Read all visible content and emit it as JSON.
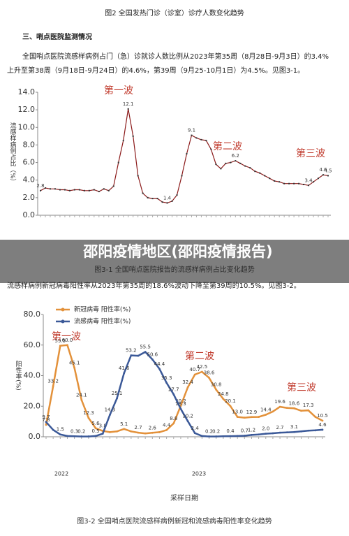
{
  "header": {
    "caption": "图2 全国发热门诊（诊室）诊疗人数变化趋势"
  },
  "section": {
    "heading": "三、哨点医院监测情况",
    "paragraph": "全国哨点医院流感样病例占门（急）诊就诊人数比例从2023年第35周（8月28日-9月3日）的3.4%上升至第38周（9月18日-9月24日）的4.6%，第39周（9月25-10月1日）为4.5%。见图3-1。"
  },
  "watermark": "邵阳疫情地区(邵阳疫情报告)",
  "paragraph2": "流感样病例新冠病毒阳性率从2023年第35周的18.6%波动下降至第39周的10.5%。见图3-2。",
  "chart_data": [
    {
      "type": "line",
      "caption": "图3-1 全国哨点医院报告的流感样病例占比变化趋势",
      "y_label": "流感样病例占比（%）",
      "annotations": [
        "第一波",
        "第二波",
        "第三波"
      ],
      "categories": [
        null,
        null,
        null,
        null,
        null,
        null,
        null,
        null,
        null,
        null,
        null,
        null,
        null,
        null,
        null,
        null,
        null,
        null,
        null,
        null,
        null,
        null,
        null,
        null,
        null,
        null,
        null,
        null,
        null,
        null,
        null,
        null,
        null,
        null,
        null,
        null,
        null,
        null,
        null,
        null,
        null,
        null,
        null,
        null,
        null,
        null,
        null,
        null,
        null,
        null,
        null,
        null,
        null,
        null,
        null,
        null,
        null,
        null,
        null,
        null
      ],
      "series": [
        {
          "color": "#8b1a1a",
          "values": [
            2.8,
            3.1,
            3.0,
            3.0,
            2.9,
            2.9,
            2.8,
            2.9,
            2.9,
            2.8,
            2.8,
            2.9,
            2.7,
            3.0,
            2.8,
            3.3,
            6.0,
            8.5,
            12.1,
            9.0,
            4.5,
            2.5,
            2.0,
            1.9,
            1.9,
            1.5,
            1.4,
            1.6,
            2.3,
            4.5,
            7.0,
            9.1,
            8.8,
            8.6,
            8.5,
            7.5,
            5.8,
            5.3,
            5.9,
            6.0,
            6.2,
            5.9,
            5.6,
            5.4,
            5.0,
            4.8,
            4.5,
            4.2,
            3.9,
            3.8,
            3.6,
            3.6,
            3.6,
            3.6,
            3.5,
            3.4,
            3.8,
            4.2,
            4.6,
            4.5
          ],
          "value_labels": [
            "2.8",
            null,
            null,
            null,
            null,
            null,
            null,
            null,
            null,
            null,
            null,
            null,
            null,
            null,
            null,
            null,
            null,
            null,
            "12.1",
            null,
            null,
            null,
            null,
            null,
            null,
            null,
            "1.4",
            null,
            null,
            null,
            null,
            "9.1",
            null,
            null,
            null,
            null,
            null,
            null,
            null,
            null,
            "6.2",
            null,
            null,
            null,
            null,
            null,
            null,
            null,
            null,
            null,
            null,
            null,
            null,
            null,
            null,
            "3.4",
            null,
            null,
            "4.6",
            "4.5"
          ]
        }
      ],
      "ylim": [
        0,
        14
      ],
      "yticks": [
        {
          "value": 0,
          "label": "0.0"
        },
        {
          "value": 2,
          "label": "2.0"
        },
        {
          "value": 4,
          "label": "4.0"
        },
        {
          "value": 6,
          "label": "6.0"
        },
        {
          "value": 8,
          "label": "8.0"
        },
        {
          "value": 10,
          "label": "10.0"
        },
        {
          "value": 12,
          "label": "12.0"
        },
        {
          "value": 14,
          "label": "14.0"
        }
      ]
    },
    {
      "type": "line",
      "caption": "图3-2 全国哨点医院流感样病例新冠和流感病毒阳性率变化趋势",
      "y_label": "阳性率(%)",
      "x_label": "采样日期",
      "x_groups": [
        "2022",
        "2023"
      ],
      "annotations": [
        "第一波",
        "第二波",
        "第三波"
      ],
      "categories": [
        null,
        null,
        null,
        null,
        null,
        null,
        null,
        null,
        null,
        null,
        null,
        null,
        null,
        null,
        null,
        null,
        null,
        null,
        null,
        null,
        null,
        null,
        null,
        null,
        null,
        null,
        null,
        null,
        null,
        null,
        null,
        null,
        null,
        null,
        null,
        null,
        null,
        null,
        null,
        null
      ],
      "series": [
        {
          "name": "新冠病毒 阳性率(%)",
          "color": "#e3913a",
          "values": [
            7.8,
            33.2,
            59.5,
            60.0,
            45.1,
            24.1,
            12.3,
            5.6,
            3.8,
            3.0,
            3.5,
            5.1,
            3.5,
            2.7,
            2.2,
            2.6,
            3.0,
            4.4,
            8.8,
            20.2,
            32.4,
            40.7,
            42.5,
            38.6,
            30.8,
            24.8,
            20.1,
            13.0,
            12.5,
            12.9,
            13.0,
            14.4,
            16.5,
            19.6,
            18.9,
            18.6,
            17.0,
            17.3,
            13.0,
            10.5
          ],
          "value_labels": [
            "7.8",
            "33.2",
            "59.5",
            "60.0",
            "45.1",
            "24.1",
            "12.3",
            "5.6",
            "3.8",
            null,
            null,
            "5.1",
            null,
            "2.7",
            null,
            "2.6",
            null,
            "4.4",
            "8.8",
            "20.2",
            "32.4",
            "40.7",
            "42.5",
            "38.6",
            "30.8",
            "24.8",
            "20.1",
            "13.0",
            null,
            "12.9",
            null,
            "14.4",
            null,
            "19.6",
            null,
            "18.6",
            null,
            "17.3",
            null,
            "10.5"
          ]
        },
        {
          "name": "流感病毒 阳性率(%)",
          "color": "#3b5998",
          "values": [
            9.7,
            4.5,
            1.5,
            0.5,
            0.3,
            0.2,
            0.2,
            0.5,
            2.0,
            14.3,
            25.1,
            41.6,
            53.2,
            53.0,
            55.5,
            50.6,
            44.4,
            35.3,
            27.7,
            18.3,
            10.2,
            2.4,
            0.5,
            0.2,
            0.2,
            0.3,
            0.4,
            0.5,
            0.7,
            1.2,
            1.5,
            2.0,
            2.3,
            2.7,
            2.9,
            3.1,
            3.5,
            4.0,
            4.2,
            4.6
          ],
          "value_labels": [
            "9.7",
            null,
            "1.5",
            null,
            "0.3",
            "0.2",
            null,
            "0.5",
            null,
            "14.3",
            "25.1",
            "41.6",
            "53.2",
            null,
            "55.5",
            "50.6",
            "44.4",
            "35.3",
            "27.7",
            "18.3",
            "10.2",
            "2.4",
            null,
            "0.2",
            "0.2",
            null,
            "0.4",
            null,
            "0.7",
            "1.2",
            null,
            "2.0",
            null,
            "2.7",
            null,
            "3.1",
            null,
            null,
            null,
            "4.6"
          ]
        }
      ],
      "ylim": [
        0,
        80
      ],
      "yticks": [
        {
          "value": 0,
          "label": "0.0"
        },
        {
          "value": 20,
          "label": "20.0"
        },
        {
          "value": 40,
          "label": "40.0"
        },
        {
          "value": 60,
          "label": "60.0"
        },
        {
          "value": 80,
          "label": "80.0"
        }
      ]
    }
  ]
}
